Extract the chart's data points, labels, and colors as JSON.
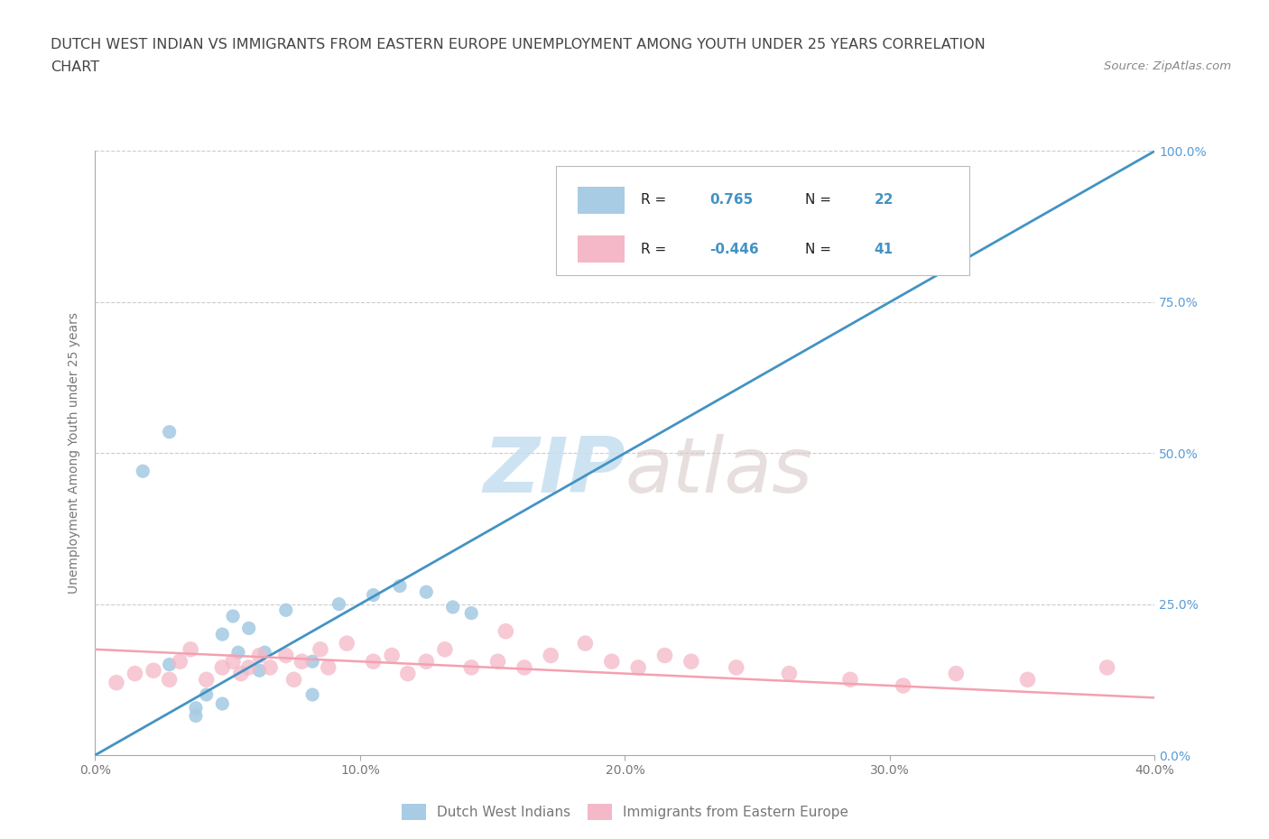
{
  "title_line1": "DUTCH WEST INDIAN VS IMMIGRANTS FROM EASTERN EUROPE UNEMPLOYMENT AMONG YOUTH UNDER 25 YEARS CORRELATION",
  "title_line2": "CHART",
  "source_text": "Source: ZipAtlas.com",
  "ylabel": "Unemployment Among Youth under 25 years",
  "xlim": [
    0.0,
    0.4
  ],
  "ylim": [
    0.0,
    1.0
  ],
  "xtick_labels": [
    "0.0%",
    "10.0%",
    "20.0%",
    "30.0%",
    "40.0%"
  ],
  "xtick_vals": [
    0.0,
    0.1,
    0.2,
    0.3,
    0.4
  ],
  "ytick_vals": [
    0.0,
    0.25,
    0.5,
    0.75,
    1.0
  ],
  "right_ytick_labels": [
    "0.0%",
    "25.0%",
    "50.0%",
    "75.0%",
    "100.0%"
  ],
  "blue_color": "#a8cce4",
  "pink_color": "#f4b8c8",
  "blue_line_color": "#4393c3",
  "pink_line_color": "#f4a0b0",
  "R_blue": 0.765,
  "N_blue": 22,
  "R_pink": -0.446,
  "N_pink": 41,
  "legend_label_blue": "Dutch West Indians",
  "legend_label_pink": "Immigrants from Eastern Europe",
  "watermark_zip": "ZIP",
  "watermark_atlas": "atlas",
  "background_color": "#ffffff",
  "blue_scatter_x": [
    0.018,
    0.028,
    0.038,
    0.042,
    0.048,
    0.052,
    0.054,
    0.058,
    0.062,
    0.064,
    0.072,
    0.082,
    0.092,
    0.048,
    0.038,
    0.082,
    0.028,
    0.105,
    0.115,
    0.125,
    0.135,
    0.142
  ],
  "blue_scatter_y": [
    0.47,
    0.15,
    0.065,
    0.1,
    0.2,
    0.23,
    0.17,
    0.21,
    0.14,
    0.17,
    0.24,
    0.1,
    0.25,
    0.085,
    0.078,
    0.155,
    0.535,
    0.265,
    0.28,
    0.27,
    0.245,
    0.235
  ],
  "pink_scatter_x": [
    0.008,
    0.015,
    0.022,
    0.028,
    0.032,
    0.036,
    0.042,
    0.048,
    0.052,
    0.055,
    0.058,
    0.062,
    0.066,
    0.072,
    0.075,
    0.078,
    0.085,
    0.088,
    0.095,
    0.105,
    0.112,
    0.118,
    0.125,
    0.132,
    0.142,
    0.152,
    0.162,
    0.172,
    0.185,
    0.195,
    0.205,
    0.215,
    0.225,
    0.242,
    0.262,
    0.285,
    0.305,
    0.325,
    0.352,
    0.382,
    0.155
  ],
  "pink_scatter_y": [
    0.12,
    0.135,
    0.14,
    0.125,
    0.155,
    0.175,
    0.125,
    0.145,
    0.155,
    0.135,
    0.145,
    0.165,
    0.145,
    0.165,
    0.125,
    0.155,
    0.175,
    0.145,
    0.185,
    0.155,
    0.165,
    0.135,
    0.155,
    0.175,
    0.145,
    0.155,
    0.145,
    0.165,
    0.185,
    0.155,
    0.145,
    0.165,
    0.155,
    0.145,
    0.135,
    0.125,
    0.115,
    0.135,
    0.125,
    0.145,
    0.205
  ],
  "blue_line_x": [
    0.0,
    0.4
  ],
  "blue_line_y": [
    0.0,
    1.0
  ],
  "pink_line_x": [
    0.0,
    0.4
  ],
  "pink_line_y": [
    0.175,
    0.095
  ],
  "grid_color": "#cccccc",
  "tick_color": "#777777",
  "right_tick_color": "#5b9bd5"
}
